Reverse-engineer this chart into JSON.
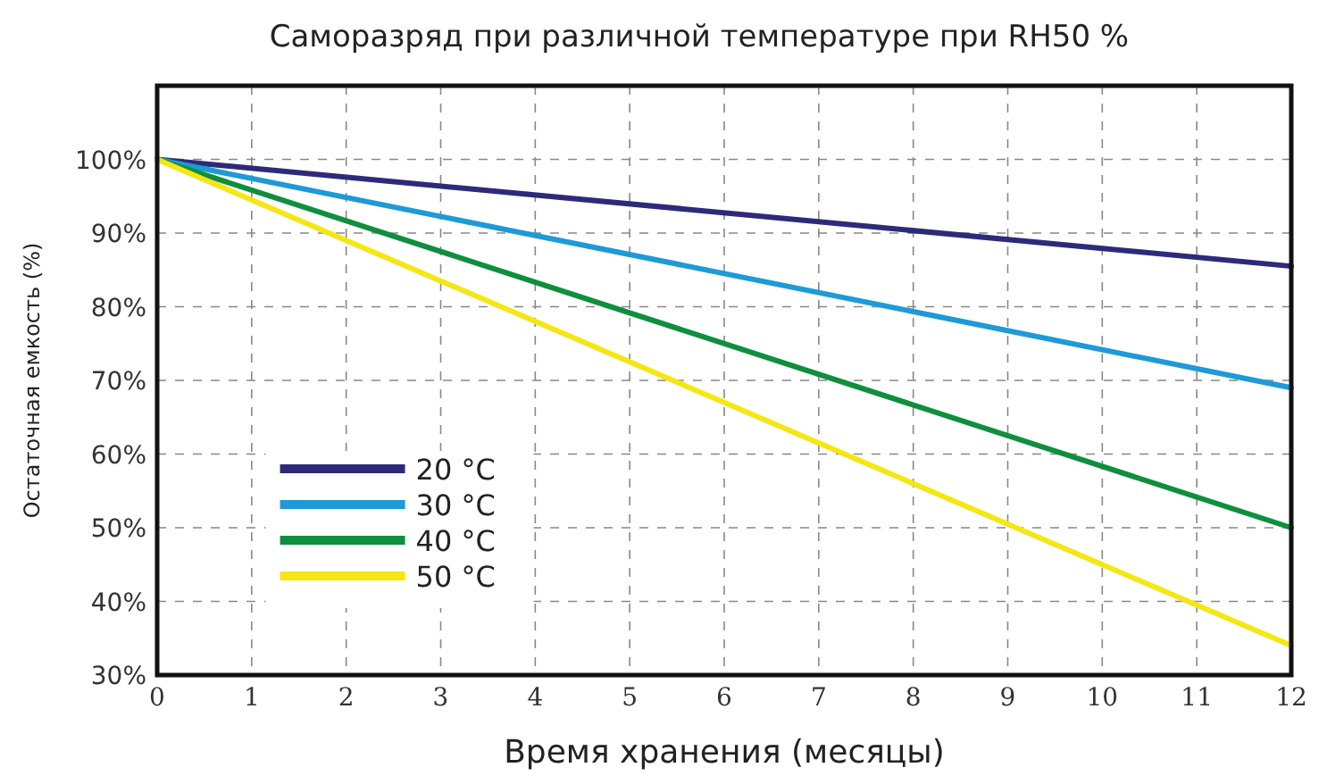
{
  "chart_data": {
    "type": "line",
    "title": "Саморазряд при различной температуре  при RH50 %",
    "xlabel": "Время хранения (месяцы)",
    "ylabel": "Остаточная емкость  (%)",
    "x": [
      0,
      12
    ],
    "series": [
      {
        "name": "20 °C",
        "color": "#2e2a7a",
        "values": [
          100,
          85.5
        ]
      },
      {
        "name": "30 °C",
        "color": "#1e9ad6",
        "values": [
          100,
          69
        ]
      },
      {
        "name": "40 °C",
        "color": "#0f8f3e",
        "values": [
          100,
          50
        ]
      },
      {
        "name": "50 °C",
        "color": "#f5e614",
        "values": [
          100,
          34
        ]
      }
    ],
    "xlim": [
      0,
      12
    ],
    "xticks": [
      0,
      1,
      2,
      3,
      4,
      5,
      6,
      7,
      8,
      9,
      10,
      11,
      12
    ],
    "ylim": [
      30,
      110
    ],
    "yticks": [
      {
        "value": 30,
        "label": "30%"
      },
      {
        "value": 40,
        "label": "40%"
      },
      {
        "value": 50,
        "label": "50%"
      },
      {
        "value": 60,
        "label": "60%"
      },
      {
        "value": 70,
        "label": "70%"
      },
      {
        "value": 80,
        "label": "80%"
      },
      {
        "value": 90,
        "label": "90%"
      },
      {
        "value": 100,
        "label": "100%"
      }
    ],
    "grid": true,
    "legend": "bottom left",
    "marker": "none",
    "line_style": "solid"
  }
}
